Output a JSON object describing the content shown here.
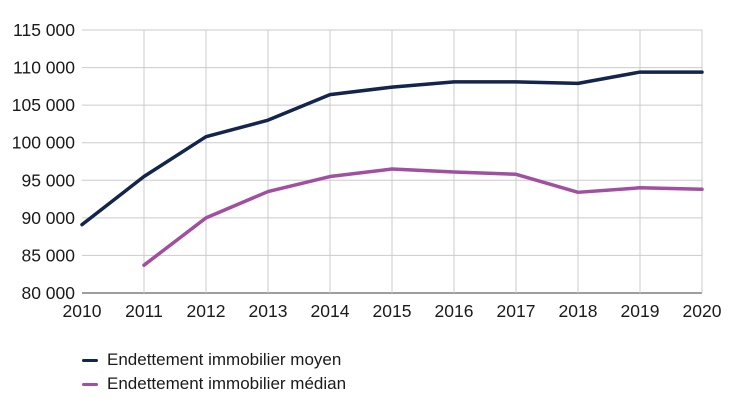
{
  "colors": {
    "grid": "#cbcbcb",
    "axis": "#7f7f7f",
    "text": "#1a1a1a",
    "series_moyen": "#13254c",
    "series_median": "#a14fa0",
    "background": "#ffffff"
  },
  "chart_data": {
    "type": "line",
    "x": [
      2010,
      2011,
      2012,
      2013,
      2014,
      2015,
      2016,
      2017,
      2018,
      2019,
      2020
    ],
    "series": [
      {
        "name": "Endettement immobilier moyen",
        "color": "#13254c",
        "values": [
          89100,
          95500,
          100800,
          103000,
          106400,
          107400,
          108100,
          108100,
          107900,
          109400,
          109400
        ]
      },
      {
        "name": "Endettement immobilier médian",
        "color": "#a14fa0",
        "values": [
          null,
          83700,
          90000,
          93500,
          95500,
          96500,
          96100,
          95800,
          93400,
          94000,
          93800
        ]
      }
    ],
    "ylim": [
      80000,
      115000
    ],
    "yticks": [
      {
        "value": 80000,
        "label": "80 000"
      },
      {
        "value": 85000,
        "label": "85 000"
      },
      {
        "value": 90000,
        "label": "90 000"
      },
      {
        "value": 95000,
        "label": "95 000"
      },
      {
        "value": 100000,
        "label": "100 000"
      },
      {
        "value": 105000,
        "label": "105 000"
      },
      {
        "value": 110000,
        "label": "110 000"
      },
      {
        "value": 115000,
        "label": "115 000"
      }
    ],
    "xtick_labels": [
      "2010",
      "2011",
      "2012",
      "2013",
      "2014",
      "2015",
      "2016",
      "2017",
      "2018",
      "2019",
      "2020"
    ],
    "grid": true,
    "legend_position": "bottom-left",
    "title": "",
    "xlabel": "",
    "ylabel": ""
  },
  "legend": {
    "items": [
      {
        "label": "Endettement immobilier moyen"
      },
      {
        "label": "Endettement immobilier médian"
      }
    ]
  }
}
